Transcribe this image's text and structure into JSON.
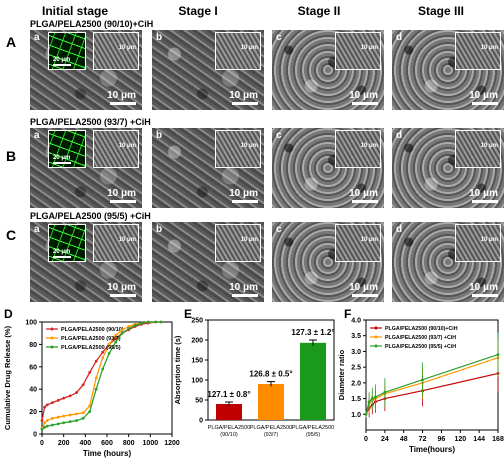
{
  "stages": [
    "Initial stage",
    "Stage I",
    "Stage II",
    "Stage III"
  ],
  "rows": [
    {
      "letter": "A",
      "title": "PLGA/PELA2500 (90/10)+CiH"
    },
    {
      "letter": "B",
      "title": "PLGA/PELA2500 (93/7) +CiH"
    },
    {
      "letter": "C",
      "title": "PLGA/PELA2500 (95/5) +CiH"
    }
  ],
  "panel_letters": [
    "a",
    "b",
    "c",
    "d"
  ],
  "scale_main": "10 μm",
  "scale_inset": "10 μm",
  "scale_fluor": "20 μm",
  "chart_data": [
    {
      "panel": "D",
      "type": "line",
      "xlabel": "Time (hours)",
      "ylabel": "Cumulative Drug Release (%)",
      "xlim": [
        0,
        1200
      ],
      "ylim": [
        0,
        100
      ],
      "xticks": [
        0,
        200,
        400,
        600,
        800,
        1000,
        1200
      ],
      "yticks": [
        0,
        20,
        40,
        60,
        80,
        100
      ],
      "series": [
        {
          "name": "PLGA/PELA2500 (90/10)",
          "color": "#d62728",
          "x": [
            0,
            24,
            48,
            96,
            150,
            200,
            260,
            320,
            380,
            440,
            500,
            560,
            620,
            680,
            740,
            800,
            860,
            920,
            980,
            1050,
            1100
          ],
          "y": [
            12,
            24,
            26,
            28,
            30,
            32,
            34,
            37,
            44,
            55,
            65,
            73,
            80,
            85,
            90,
            93,
            96,
            98,
            99,
            100,
            100
          ]
        },
        {
          "name": "PLGA/PELA2500 (93/7)",
          "color": "#ff9900",
          "x": [
            0,
            24,
            48,
            96,
            150,
            200,
            260,
            320,
            380,
            440,
            500,
            560,
            620,
            680,
            740,
            800,
            860,
            920,
            980,
            1050,
            1100
          ],
          "y": [
            5,
            10,
            12,
            14,
            15,
            16,
            17,
            18,
            19,
            25,
            50,
            68,
            80,
            88,
            93,
            96,
            98,
            99,
            100,
            100,
            100
          ]
        },
        {
          "name": "PLGA/PELA2500 (95/5)",
          "color": "#2ca02c",
          "x": [
            0,
            24,
            48,
            96,
            150,
            200,
            260,
            320,
            380,
            440,
            500,
            560,
            620,
            680,
            740,
            800,
            860,
            920,
            980,
            1050,
            1100
          ],
          "y": [
            4,
            6,
            7,
            8,
            9,
            10,
            11,
            12,
            14,
            20,
            40,
            58,
            72,
            82,
            90,
            94,
            97,
            99,
            100,
            100,
            100
          ]
        }
      ]
    },
    {
      "panel": "E",
      "type": "bar",
      "ylabel": "Absorption time (s)",
      "ylim": [
        0,
        250
      ],
      "yticks": [
        0,
        50,
        100,
        150,
        200,
        250
      ],
      "categories": [
        [
          "PLGA/PELA2500",
          "(90/10)"
        ],
        [
          "PLGA/PELA2500",
          "(93/7)"
        ],
        [
          "PLGA/PELA2500",
          "(95/5)"
        ]
      ],
      "values": [
        40,
        90,
        193
      ],
      "errors": [
        5,
        6,
        7
      ],
      "colors": [
        "#c00000",
        "#ff8c00",
        "#1a9a1a"
      ],
      "annotations": [
        "127.1 ± 0.8°",
        "126.8 ± 0.5°",
        "127.3 ± 1.2°"
      ]
    },
    {
      "panel": "F",
      "type": "line",
      "xlabel": "Time(hours)",
      "ylabel": "Diameter ratio",
      "xlim": [
        0,
        168
      ],
      "ylim": [
        0.5,
        4.0
      ],
      "xticks": [
        0,
        24,
        48,
        72,
        96,
        120,
        144,
        168
      ],
      "yticks": [
        1.0,
        1.5,
        2.0,
        2.5,
        3.0,
        3.5,
        4.0
      ],
      "series": [
        {
          "name": "PLGA/PELA2500 (90/10)+CiH",
          "color": "#c00000",
          "x": [
            0,
            4,
            8,
            12,
            24,
            72,
            168
          ],
          "y": [
            1.0,
            1.2,
            1.3,
            1.4,
            1.5,
            1.75,
            2.3
          ],
          "err": [
            0.1,
            0.3,
            0.3,
            0.35,
            0.4,
            0.5,
            0.6
          ]
        },
        {
          "name": "PLGA/PELA2500 (93/7) +CiH",
          "color": "#ff9900",
          "x": [
            0,
            4,
            8,
            12,
            24,
            72,
            168
          ],
          "y": [
            1.0,
            1.35,
            1.45,
            1.5,
            1.65,
            2.0,
            2.8
          ],
          "err": [
            0.1,
            0.3,
            0.3,
            0.35,
            0.4,
            0.5,
            0.6
          ]
        },
        {
          "name": "PLGA/PELA2500 (95/5) +CiH",
          "color": "#2ca02c",
          "x": [
            0,
            4,
            8,
            12,
            24,
            72,
            168
          ],
          "y": [
            1.0,
            1.4,
            1.5,
            1.55,
            1.7,
            2.1,
            2.9
          ],
          "err": [
            0.1,
            0.3,
            0.35,
            0.4,
            0.45,
            0.55,
            0.7
          ]
        }
      ]
    }
  ]
}
